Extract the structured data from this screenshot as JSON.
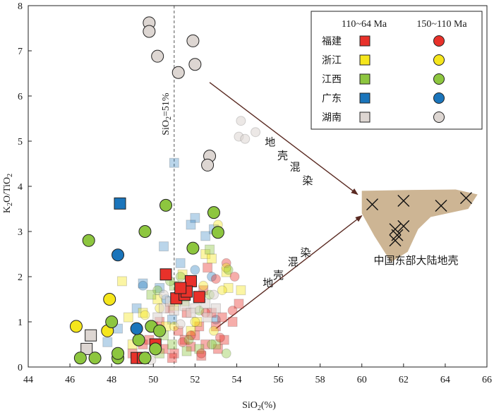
{
  "chart_data": {
    "type": "scatter",
    "xlabel": "SiO₂(%)",
    "ylabel": "K₂O/TiO₂",
    "xlim": [
      44,
      66
    ],
    "ylim": [
      0,
      8
    ],
    "x_ticks": [
      44,
      46,
      48,
      50,
      52,
      54,
      56,
      58,
      60,
      62,
      64,
      66
    ],
    "y_ticks": [
      0,
      1,
      2,
      3,
      4,
      5,
      6,
      7,
      8
    ],
    "grid": false,
    "legend_position": "top-right",
    "legend": {
      "col_headers": [
        "110~64 Ma",
        "150~110 Ma"
      ],
      "rows": [
        {
          "name": "福建",
          "color": "#e8312a"
        },
        {
          "name": "浙江",
          "color": "#f5e61c"
        },
        {
          "name": "江西",
          "color": "#8dc63f"
        },
        {
          "name": "广东",
          "color": "#1b75bb"
        },
        {
          "name": "湖南",
          "color": "#ddd6d2"
        }
      ]
    },
    "vline": {
      "x": 51,
      "label": "SiO₂=51%"
    },
    "crust_field": {
      "label": "中国东部大陆地壳",
      "color": "#cdb594"
    },
    "arrow_labels": {
      "upper": [
        "地",
        "壳",
        "混",
        "染"
      ],
      "lower": [
        "地",
        "壳",
        "混",
        "染"
      ]
    },
    "crust_points": [
      {
        "x": 60.5,
        "y": 3.6
      },
      {
        "x": 62.0,
        "y": 3.68
      },
      {
        "x": 63.8,
        "y": 3.57
      },
      {
        "x": 65.0,
        "y": 3.74
      },
      {
        "x": 61.6,
        "y": 3.05
      },
      {
        "x": 62.0,
        "y": 3.12
      },
      {
        "x": 61.7,
        "y": 2.92
      },
      {
        "x": 61.6,
        "y": 2.8
      }
    ],
    "series": [
      {
        "name": "福建",
        "age": "110~64 Ma",
        "marker": "square",
        "color": "#e8312a",
        "opacity": 1,
        "points": [
          [
            49.2,
            0.2
          ],
          [
            49.5,
            0.2
          ],
          [
            50.1,
            0.5
          ],
          [
            50.6,
            2.05
          ],
          [
            51.1,
            1.52
          ],
          [
            51.5,
            1.6
          ],
          [
            51.8,
            1.9
          ],
          [
            51.6,
            1.67
          ],
          [
            52.2,
            1.55
          ],
          [
            51.3,
            1.75
          ]
        ]
      },
      {
        "name": "福建",
        "age": "110~64 Ma",
        "marker": "square",
        "color": "#e8312a",
        "opacity": 0.4,
        "points": [
          [
            49.5,
            0.5
          ],
          [
            50.0,
            0.9
          ],
          [
            50.5,
            0.4
          ],
          [
            51.0,
            0.3
          ],
          [
            51.5,
            0.6
          ],
          [
            52.0,
            0.7
          ],
          [
            52.5,
            0.5
          ],
          [
            53.0,
            0.9
          ],
          [
            53.3,
            1.1
          ],
          [
            53.8,
            1.0
          ],
          [
            52.8,
            1.2
          ],
          [
            52.2,
            0.9
          ],
          [
            51.6,
            1.2
          ],
          [
            50.8,
            1.3
          ],
          [
            50.3,
            1.0
          ],
          [
            49.8,
            0.6
          ],
          [
            51.2,
            0.8
          ],
          [
            53.4,
            0.6
          ],
          [
            52.6,
            2.2
          ],
          [
            52.4,
            1.7
          ],
          [
            54.1,
            1.4
          ],
          [
            49.0,
            0.3
          ],
          [
            50.9,
            0.2
          ],
          [
            52.3,
            0.25
          ],
          [
            51.8,
            0.45
          ],
          [
            53.1,
            0.4
          ]
        ]
      },
      {
        "name": "浙江",
        "age": "110~64 Ma",
        "marker": "square",
        "color": "#f5e61c",
        "opacity": 0.4,
        "points": [
          [
            48.8,
            1.1
          ],
          [
            49.5,
            1.2
          ],
          [
            50.2,
            1.5
          ],
          [
            51.0,
            1.35
          ],
          [
            52.5,
            2.5
          ],
          [
            52.8,
            2.4
          ],
          [
            53.6,
            1.75
          ],
          [
            51.8,
            0.8
          ],
          [
            50.6,
            0.9
          ],
          [
            52.1,
            1.0
          ],
          [
            54.2,
            1.7
          ],
          [
            49.0,
            0.5
          ],
          [
            51.4,
            2.05
          ],
          [
            48.5,
            1.9
          ],
          [
            53.5,
            2.1
          ]
        ]
      },
      {
        "name": "江西",
        "age": "110~64 Ma",
        "marker": "square",
        "color": "#8dc63f",
        "opacity": 0.4,
        "points": [
          [
            49.6,
            0.2
          ],
          [
            50.3,
            0.3
          ],
          [
            50.9,
            0.5
          ],
          [
            51.6,
            0.35
          ],
          [
            52.2,
            0.4
          ],
          [
            53.0,
            0.5
          ],
          [
            50.5,
            0.7
          ],
          [
            49.9,
            1.6
          ],
          [
            51.5,
            1.45
          ],
          [
            52.7,
            2.6
          ],
          [
            51.0,
            1.8
          ]
        ]
      },
      {
        "name": "广东",
        "age": "110~64 Ma",
        "marker": "square",
        "color": "#1b75bb",
        "opacity": 0.3,
        "points": [
          [
            51.0,
            4.52
          ],
          [
            52.0,
            3.3
          ],
          [
            51.8,
            3.15
          ],
          [
            50.5,
            2.67
          ],
          [
            49.5,
            1.85
          ],
          [
            50.3,
            1.75
          ],
          [
            48.3,
            0.85
          ],
          [
            47.8,
            0.55
          ],
          [
            51.3,
            2.3
          ],
          [
            52.5,
            2.9
          ],
          [
            52.9,
            3.05
          ],
          [
            49.2,
            1.3
          ],
          [
            50.9,
            1.05
          ]
        ]
      },
      {
        "name": "广东",
        "age": "110~64 Ma",
        "marker": "square",
        "color": "#1b75bb",
        "opacity": 1,
        "points": [
          [
            48.4,
            3.62
          ]
        ]
      },
      {
        "name": "湖南",
        "age": "110~64 Ma",
        "marker": "square",
        "color": "#ddd6d2",
        "opacity": 1,
        "points": [
          [
            46.8,
            0.4
          ],
          [
            47.0,
            0.7
          ]
        ]
      },
      {
        "name": "湖南",
        "age": "110~64 Ma",
        "marker": "square",
        "color": "#ddd6d2",
        "opacity": 0.6,
        "points": [
          [
            50.5,
            1.3
          ],
          [
            51.0,
            1.25
          ],
          [
            51.5,
            1.35
          ],
          [
            52.0,
            1.3
          ],
          [
            52.5,
            1.4
          ],
          [
            53.0,
            1.3
          ],
          [
            50.8,
            1.45
          ],
          [
            51.8,
            1.2
          ],
          [
            50.2,
            1.1
          ],
          [
            52.6,
            1.1
          ]
        ]
      },
      {
        "name": "福建",
        "age": "150~110 Ma",
        "marker": "circle",
        "color": "#e8312a",
        "opacity": 0.4,
        "points": [
          [
            53.5,
            2.3
          ],
          [
            53.9,
            2.0
          ],
          [
            53.0,
            1.95
          ],
          [
            52.5,
            1.2
          ],
          [
            51.8,
            0.7
          ],
          [
            53.2,
            0.65
          ],
          [
            53.8,
            1.25
          ],
          [
            52.3,
            0.3
          ],
          [
            51.4,
            0.55
          ]
        ]
      },
      {
        "name": "浙江",
        "age": "150~110 Ma",
        "marker": "circle",
        "color": "#f5e61c",
        "opacity": 1,
        "points": [
          [
            46.3,
            0.9
          ],
          [
            47.8,
            0.8
          ],
          [
            47.9,
            1.5
          ]
        ]
      },
      {
        "name": "浙江",
        "age": "150~110 Ma",
        "marker": "circle",
        "color": "#f5e61c",
        "opacity": 0.4,
        "points": [
          [
            52.0,
            1.0
          ],
          [
            52.9,
            0.8
          ],
          [
            52.4,
            1.8
          ],
          [
            53.3,
            1.7
          ],
          [
            53.5,
            2.2
          ],
          [
            51.0,
            0.9
          ],
          [
            50.3,
            1.3
          ],
          [
            49.6,
            1.15
          ],
          [
            53.1,
            3.15
          ]
        ]
      },
      {
        "name": "江西",
        "age": "150~110 Ma",
        "marker": "circle",
        "color": "#8dc63f",
        "opacity": 1,
        "points": [
          [
            46.9,
            2.8
          ],
          [
            48.0,
            1.0
          ],
          [
            49.6,
            3.0
          ],
          [
            50.6,
            3.58
          ],
          [
            51.9,
            2.63
          ],
          [
            52.9,
            3.42
          ],
          [
            53.1,
            2.98
          ],
          [
            49.3,
            0.6
          ],
          [
            49.9,
            0.9
          ],
          [
            50.3,
            0.8
          ],
          [
            50.1,
            0.4
          ],
          [
            46.5,
            0.2
          ],
          [
            47.2,
            0.2
          ],
          [
            48.3,
            0.2
          ],
          [
            48.3,
            0.3
          ],
          [
            49.6,
            0.2
          ]
        ]
      },
      {
        "name": "江西",
        "age": "150~110 Ma",
        "marker": "circle",
        "color": "#8dc63f",
        "opacity": 0.4,
        "points": [
          [
            52.7,
            1.6
          ],
          [
            53.6,
            2.15
          ],
          [
            52.2,
            1.25
          ],
          [
            51.3,
            2.0
          ],
          [
            50.8,
            1.9
          ],
          [
            51.7,
            0.6
          ],
          [
            52.8,
            0.5
          ],
          [
            53.5,
            0.3
          ],
          [
            50.2,
            1.7
          ]
        ]
      },
      {
        "name": "广东",
        "age": "150~110 Ma",
        "marker": "circle",
        "color": "#1b75bb",
        "opacity": 1,
        "points": [
          [
            48.3,
            2.48
          ],
          [
            49.2,
            0.85
          ]
        ]
      },
      {
        "name": "广东",
        "age": "150~110 Ma",
        "marker": "circle",
        "color": "#1b75bb",
        "opacity": 0.35,
        "points": [
          [
            52.8,
            2.0
          ],
          [
            50.6,
            1.5
          ],
          [
            49.5,
            1.8
          ],
          [
            52.0,
            2.15
          ],
          [
            53.0,
            1.05
          ]
        ]
      },
      {
        "name": "湖南",
        "age": "150~110 Ma",
        "marker": "circle",
        "color": "#ddd6d2",
        "opacity": 1,
        "points": [
          [
            49.8,
            7.62
          ],
          [
            49.8,
            7.43
          ],
          [
            50.2,
            6.88
          ],
          [
            51.9,
            7.22
          ],
          [
            52.0,
            6.7
          ],
          [
            51.2,
            6.52
          ],
          [
            52.7,
            4.67
          ],
          [
            52.6,
            4.47
          ]
        ]
      },
      {
        "name": "湖南",
        "age": "150~110 Ma",
        "marker": "circle",
        "color": "#ddd6d2",
        "opacity": 0.55,
        "points": [
          [
            54.2,
            5.45
          ],
          [
            54.1,
            5.1
          ],
          [
            54.9,
            5.2
          ],
          [
            54.4,
            5.05
          ],
          [
            51.3,
            0.95
          ],
          [
            50.5,
            1.6
          ],
          [
            52.9,
            1.6
          ],
          [
            49.9,
            0.15
          ]
        ]
      }
    ]
  }
}
